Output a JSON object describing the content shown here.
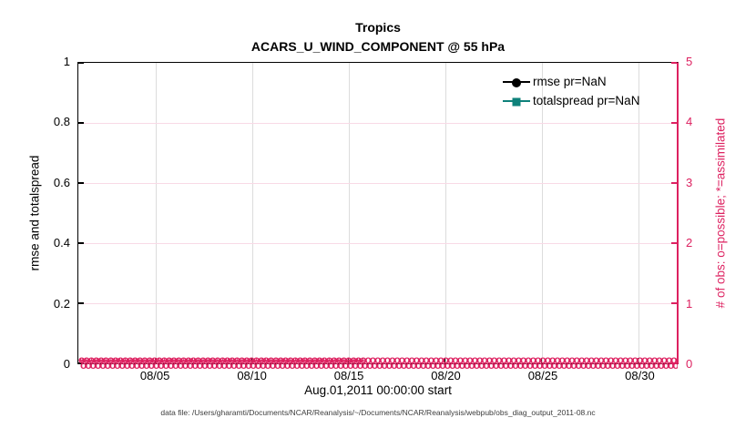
{
  "colors": {
    "pink": "#dd2160",
    "teal": "#0e817a",
    "grid_gray": "#dcdcdc",
    "grid_pink": "#f8dae6",
    "black": "#000000"
  },
  "figure": {
    "title_line1": "Tropics",
    "title_line2": "ACARS_U_WIND_COMPONENT @ 55 hPa"
  },
  "axes": {
    "left": {
      "label": "rmse and totalspread",
      "ticks": [
        {
          "value": "0",
          "frac": 0
        },
        {
          "value": "0.2",
          "frac": 0.2
        },
        {
          "value": "0.4",
          "frac": 0.4
        },
        {
          "value": "0.6",
          "frac": 0.6
        },
        {
          "value": "0.8",
          "frac": 0.8
        },
        {
          "value": "1",
          "frac": 1
        }
      ]
    },
    "right": {
      "label": "# of obs: o=possible; *=assimilated",
      "ticks": [
        {
          "value": "0",
          "frac": 0
        },
        {
          "value": "1",
          "frac": 0.2
        },
        {
          "value": "2",
          "frac": 0.4
        },
        {
          "value": "3",
          "frac": 0.6
        },
        {
          "value": "4",
          "frac": 0.8
        },
        {
          "value": "5",
          "frac": 1
        }
      ]
    },
    "bottom": {
      "label": "Aug.01,2011 00:00:00 start",
      "ticks": [
        {
          "value": "08/05",
          "frac": 0.129
        },
        {
          "value": "08/10",
          "frac": 0.2903
        },
        {
          "value": "08/15",
          "frac": 0.4516
        },
        {
          "value": "08/20",
          "frac": 0.6129
        },
        {
          "value": "08/25",
          "frac": 0.7742
        },
        {
          "value": "08/30",
          "frac": 0.9355
        }
      ]
    }
  },
  "legend": {
    "items": [
      {
        "label": "rmse pr=NaN",
        "color": "#000000",
        "marker": "circle"
      },
      {
        "label": "totalspread pr=NaN",
        "color": "#0e817a",
        "marker": "square"
      }
    ]
  },
  "band": {
    "glyph_possible": "o",
    "glyph_assimilated": "*",
    "repeat_count": 160
  },
  "caption": "data file: /Users/gharamti/Documents/NCAR/Reanalysis/~/Documents/NCAR/Reanalysis/webpub/obs_diag_output_2011-08.nc",
  "chart_data": {
    "type": "line",
    "title": "Tropics",
    "subtitle": "ACARS_U_WIND_COMPONENT @ 55 hPa",
    "xlabel": "Aug.01,2011 00:00:00 start",
    "ylabel": "rmse and totalspread",
    "y2label": "# of obs: o=possible; *=assimilated",
    "x_ticks": [
      "08/05",
      "08/10",
      "08/15",
      "08/20",
      "08/25",
      "08/30"
    ],
    "x_range_days": [
      "2011-08-01",
      "2011-09-01"
    ],
    "ylim": [
      0,
      1
    ],
    "y2lim": [
      0,
      5
    ],
    "grid": true,
    "legend_position": "upper-right",
    "series": [
      {
        "name": "rmse pr=NaN",
        "axis": "left",
        "marker": "filled-circle",
        "color": "#000000",
        "values": [],
        "note": "pr=NaN, no curve plotted"
      },
      {
        "name": "totalspread pr=NaN",
        "axis": "left",
        "marker": "filled-square",
        "color": "#0e817a",
        "values": [],
        "note": "pr=NaN, no curve plotted"
      },
      {
        "name": "observations possible (o)",
        "axis": "right",
        "marker": "o",
        "color": "#dd2160",
        "constant_value": 0,
        "note": "dense o markers at 0 across entire date range"
      },
      {
        "name": "observations assimilated (*)",
        "axis": "right",
        "marker": "*",
        "color": "#dd2160",
        "constant_value": 0,
        "note": "dense * markers at 0 across entire date range"
      }
    ]
  }
}
